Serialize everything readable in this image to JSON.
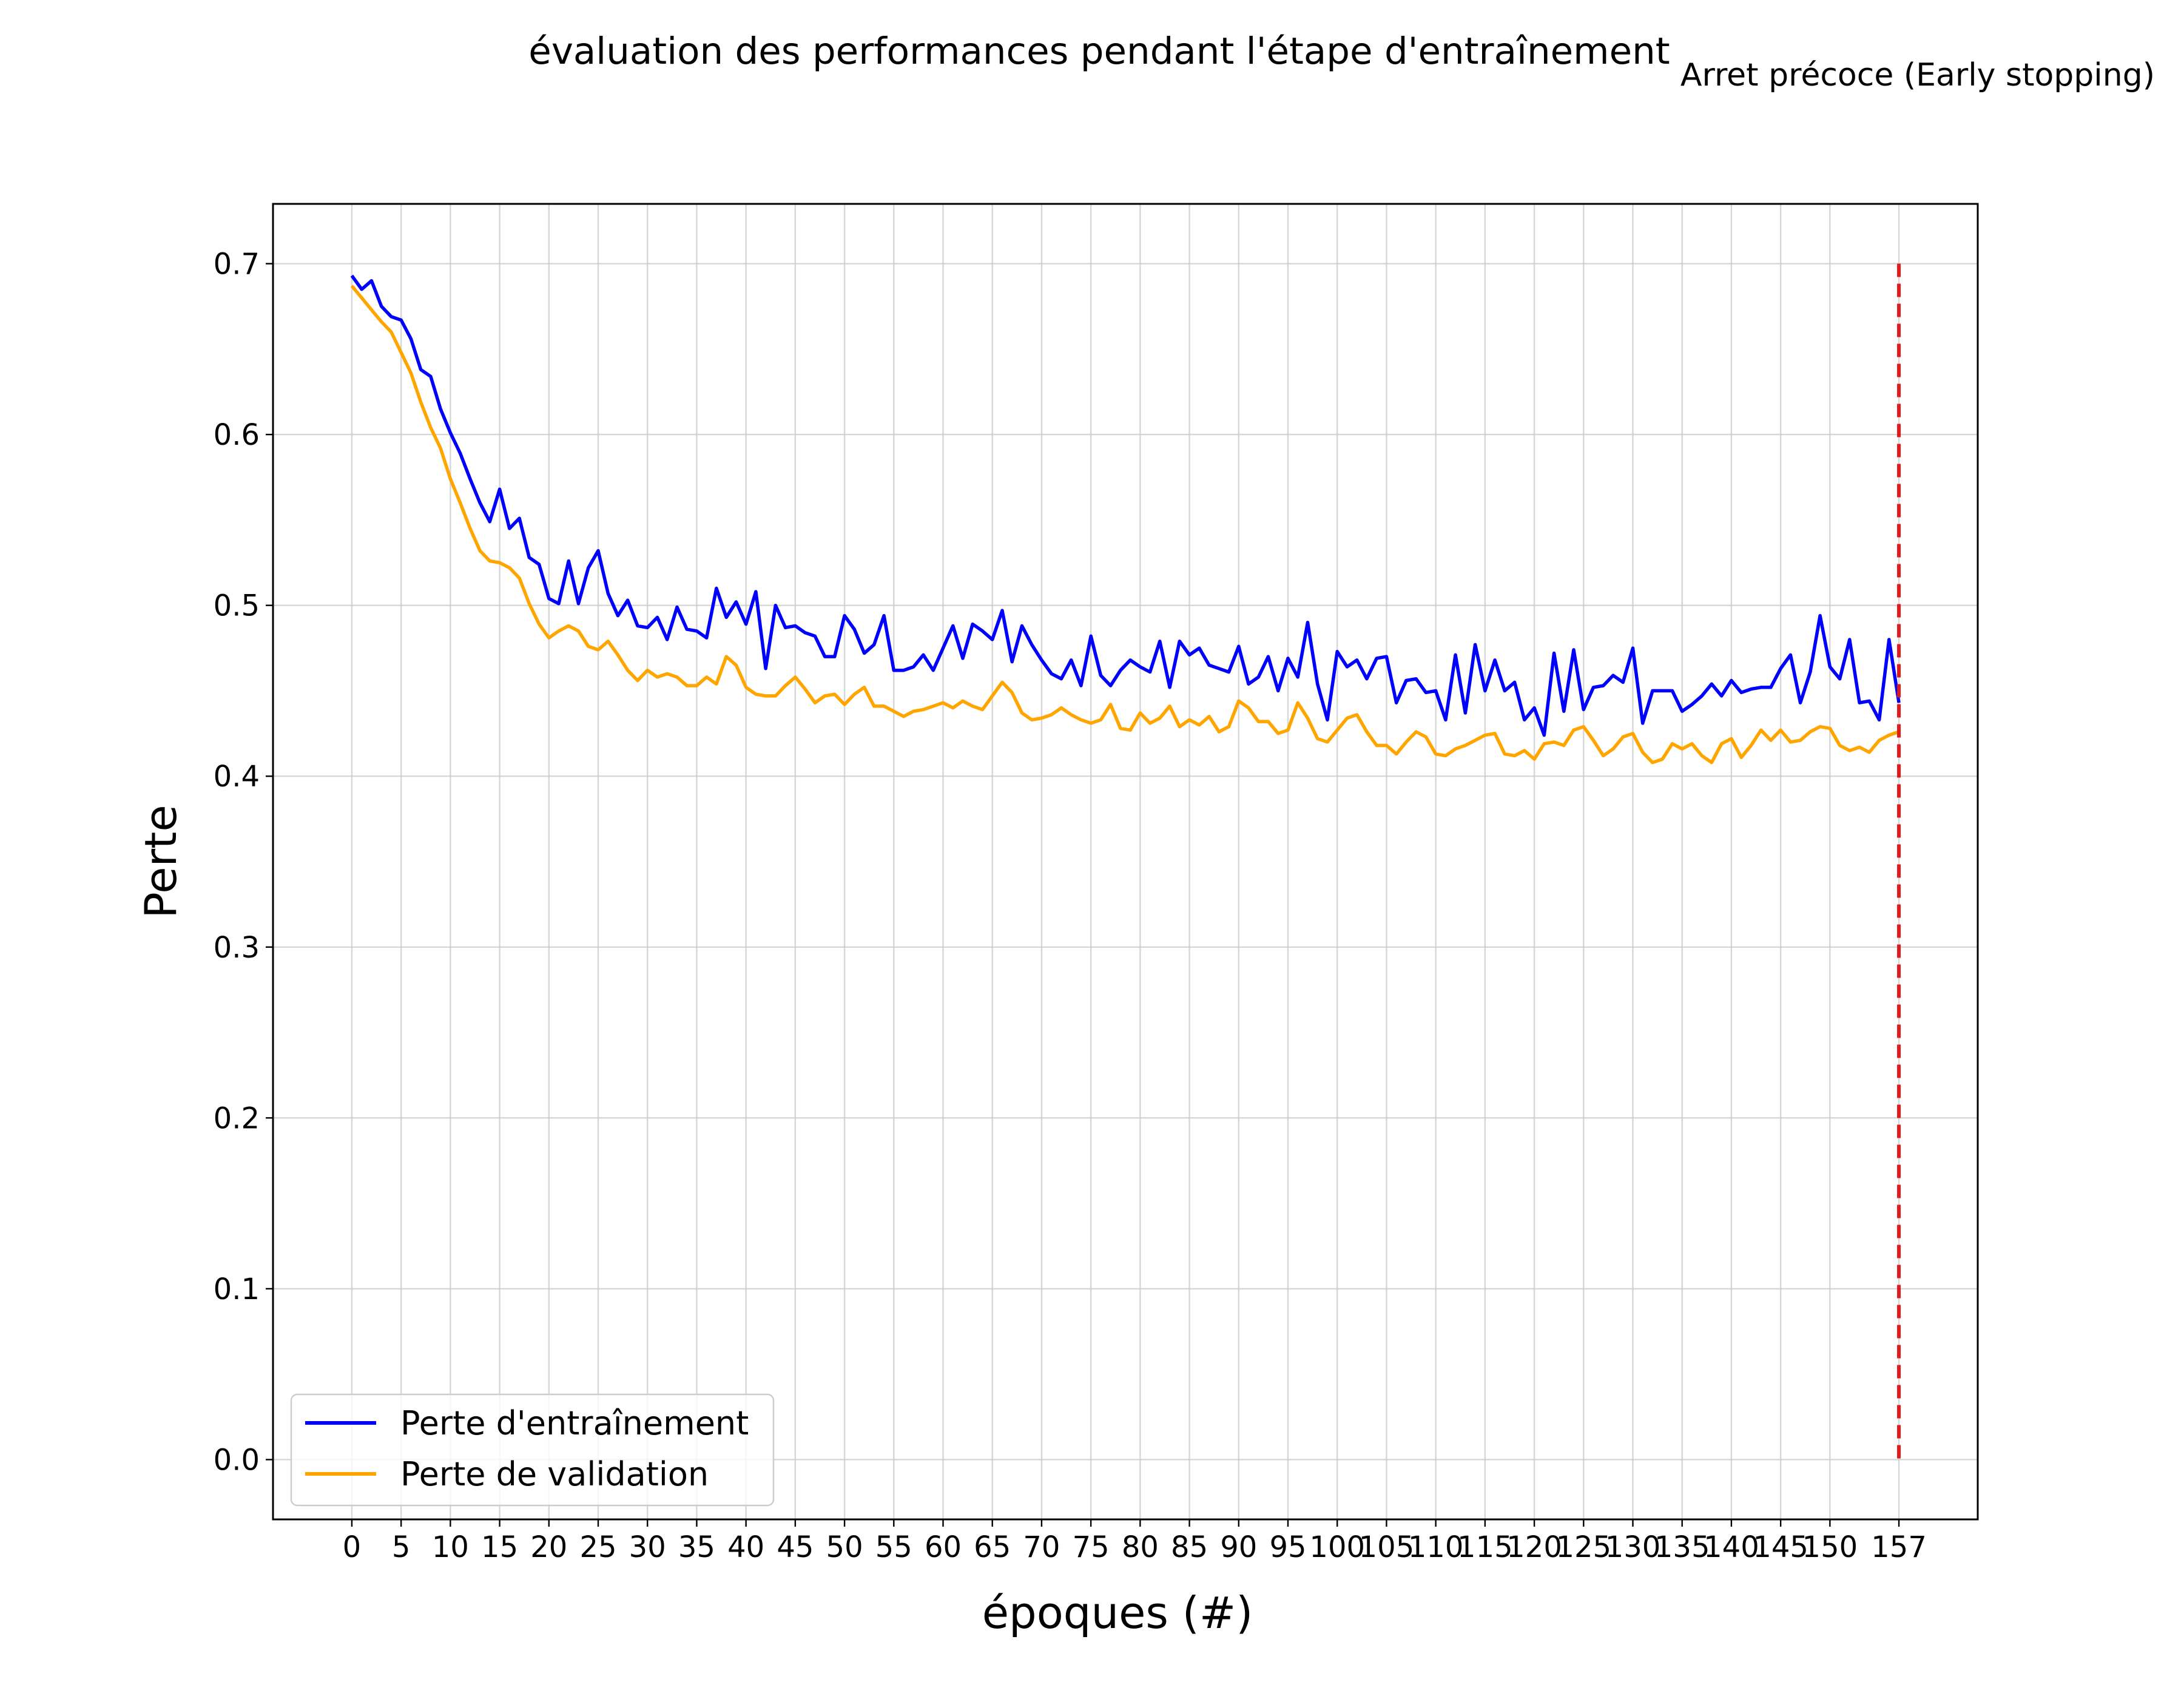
{
  "colors": {
    "train": "#0000ff",
    "val": "#ffa500",
    "stop_line": "#e31a1c",
    "note": "#1f77b4",
    "grid": "#cccccc"
  },
  "chart_data": {
    "type": "line",
    "title": "évaluation des performances pendant l'étape d'entraînement",
    "xlabel": "époques (#)",
    "ylabel": "Perte",
    "xlim": [
      -8,
      165
    ],
    "ylim": [
      -0.035,
      0.735
    ],
    "xticks": [
      0,
      5,
      10,
      15,
      20,
      25,
      30,
      35,
      40,
      45,
      50,
      55,
      60,
      65,
      70,
      75,
      80,
      85,
      90,
      95,
      100,
      105,
      110,
      115,
      120,
      125,
      130,
      135,
      140,
      145,
      150,
      157
    ],
    "yticks": [
      0.0,
      0.1,
      0.2,
      0.3,
      0.4,
      0.5,
      0.6,
      0.7
    ],
    "ytick_labels": [
      "0.0",
      "0.1",
      "0.2",
      "0.3",
      "0.4",
      "0.5",
      "0.6",
      "0.7"
    ],
    "grid": true,
    "legend_position": "lower-left",
    "annotation": {
      "text": "Arret précoce (Early stopping)",
      "x": 157,
      "ymin": 0.0,
      "ymax": 0.7,
      "style": "dashed"
    },
    "series": [
      {
        "name": "Perte d'entraînement",
        "color": "#0000ff",
        "x": [
          0,
          1,
          2,
          3,
          4,
          5,
          6,
          7,
          8,
          9,
          10,
          11,
          12,
          13,
          14,
          15,
          16,
          17,
          18,
          19,
          20,
          21,
          22,
          23,
          24,
          25,
          26,
          27,
          28,
          29,
          30,
          31,
          32,
          33,
          34,
          35,
          36,
          37,
          38,
          39,
          40,
          41,
          42,
          43,
          44,
          45,
          46,
          47,
          48,
          49,
          50,
          51,
          52,
          53,
          54,
          55,
          56,
          57,
          58,
          59,
          60,
          61,
          62,
          63,
          64,
          65,
          66,
          67,
          68,
          69,
          70,
          71,
          72,
          73,
          74,
          75,
          76,
          77,
          78,
          79,
          80,
          81,
          82,
          83,
          84,
          85,
          86,
          87,
          88,
          89,
          90,
          91,
          92,
          93,
          94,
          95,
          96,
          97,
          98,
          99,
          100,
          101,
          102,
          103,
          104,
          105,
          106,
          107,
          108,
          109,
          110,
          111,
          112,
          113,
          114,
          115,
          116,
          117,
          118,
          119,
          120,
          121,
          122,
          123,
          124,
          125,
          126,
          127,
          128,
          129,
          130,
          131,
          132,
          133,
          134,
          135,
          136,
          137,
          138,
          139,
          140,
          141,
          142,
          143,
          144,
          145,
          146,
          147,
          148,
          149,
          150,
          151,
          152,
          153,
          154,
          155,
          156,
          157
        ],
        "values": [
          0.693,
          0.685,
          0.69,
          0.675,
          0.669,
          0.667,
          0.656,
          0.638,
          0.634,
          0.615,
          0.601,
          0.589,
          0.574,
          0.56,
          0.549,
          0.568,
          0.545,
          0.551,
          0.528,
          0.524,
          0.504,
          0.501,
          0.526,
          0.501,
          0.522,
          0.532,
          0.507,
          0.494,
          0.503,
          0.488,
          0.487,
          0.493,
          0.48,
          0.499,
          0.486,
          0.485,
          0.481,
          0.51,
          0.493,
          0.502,
          0.489,
          0.508,
          0.463,
          0.5,
          0.487,
          0.488,
          0.484,
          0.482,
          0.47,
          0.47,
          0.494,
          0.486,
          0.472,
          0.477,
          0.494,
          0.462,
          0.462,
          0.464,
          0.471,
          0.462,
          0.475,
          0.488,
          0.469,
          0.489,
          0.485,
          0.48,
          0.497,
          0.467,
          0.488,
          0.477,
          0.468,
          0.46,
          0.457,
          0.468,
          0.453,
          0.482,
          0.459,
          0.453,
          0.462,
          0.468,
          0.464,
          0.461,
          0.479,
          0.452,
          0.479,
          0.471,
          0.475,
          0.465,
          0.463,
          0.461,
          0.476,
          0.454,
          0.458,
          0.47,
          0.45,
          0.469,
          0.458,
          0.49,
          0.454,
          0.433,
          0.473,
          0.464,
          0.468,
          0.457,
          0.469,
          0.47,
          0.443,
          0.456,
          0.457,
          0.449,
          0.45,
          0.433,
          0.471,
          0.437,
          0.477,
          0.45,
          0.468,
          0.45,
          0.455,
          0.433,
          0.44,
          0.424,
          0.472,
          0.438,
          0.474,
          0.439,
          0.452,
          0.453,
          0.459,
          0.455,
          0.475,
          0.431,
          0.45,
          0.45,
          0.45,
          0.438,
          0.442,
          0.447,
          0.454,
          0.447,
          0.456,
          0.449,
          0.451,
          0.452,
          0.452,
          0.463,
          0.471,
          0.443,
          0.461,
          0.494,
          0.464,
          0.457,
          0.48,
          0.443,
          0.444,
          0.433,
          0.48,
          0.443
        ]
      },
      {
        "name": "Perte de validation",
        "color": "#ffa500",
        "x": [
          0,
          1,
          2,
          3,
          4,
          5,
          6,
          7,
          8,
          9,
          10,
          11,
          12,
          13,
          14,
          15,
          16,
          17,
          18,
          19,
          20,
          21,
          22,
          23,
          24,
          25,
          26,
          27,
          28,
          29,
          30,
          31,
          32,
          33,
          34,
          35,
          36,
          37,
          38,
          39,
          40,
          41,
          42,
          43,
          44,
          45,
          46,
          47,
          48,
          49,
          50,
          51,
          52,
          53,
          54,
          55,
          56,
          57,
          58,
          59,
          60,
          61,
          62,
          63,
          64,
          65,
          66,
          67,
          68,
          69,
          70,
          71,
          72,
          73,
          74,
          75,
          76,
          77,
          78,
          79,
          80,
          81,
          82,
          83,
          84,
          85,
          86,
          87,
          88,
          89,
          90,
          91,
          92,
          93,
          94,
          95,
          96,
          97,
          98,
          99,
          100,
          101,
          102,
          103,
          104,
          105,
          106,
          107,
          108,
          109,
          110,
          111,
          112,
          113,
          114,
          115,
          116,
          117,
          118,
          119,
          120,
          121,
          122,
          123,
          124,
          125,
          126,
          127,
          128,
          129,
          130,
          131,
          132,
          133,
          134,
          135,
          136,
          137,
          138,
          139,
          140,
          141,
          142,
          143,
          144,
          145,
          146,
          147,
          148,
          149,
          150,
          151,
          152,
          153,
          154,
          155,
          156,
          157
        ],
        "values": [
          0.687,
          0.68,
          0.673,
          0.666,
          0.66,
          0.648,
          0.636,
          0.619,
          0.604,
          0.592,
          0.574,
          0.56,
          0.545,
          0.532,
          0.526,
          0.525,
          0.522,
          0.516,
          0.501,
          0.489,
          0.481,
          0.485,
          0.488,
          0.485,
          0.476,
          0.474,
          0.479,
          0.471,
          0.462,
          0.456,
          0.462,
          0.458,
          0.46,
          0.458,
          0.453,
          0.453,
          0.458,
          0.454,
          0.47,
          0.465,
          0.452,
          0.448,
          0.447,
          0.447,
          0.453,
          0.458,
          0.451,
          0.443,
          0.447,
          0.448,
          0.442,
          0.448,
          0.452,
          0.441,
          0.441,
          0.438,
          0.435,
          0.438,
          0.439,
          0.441,
          0.443,
          0.44,
          0.444,
          0.441,
          0.439,
          0.447,
          0.455,
          0.449,
          0.437,
          0.433,
          0.434,
          0.436,
          0.44,
          0.436,
          0.433,
          0.431,
          0.433,
          0.442,
          0.428,
          0.427,
          0.437,
          0.431,
          0.434,
          0.441,
          0.429,
          0.433,
          0.43,
          0.435,
          0.426,
          0.429,
          0.444,
          0.44,
          0.432,
          0.432,
          0.425,
          0.427,
          0.443,
          0.434,
          0.422,
          0.42,
          0.427,
          0.434,
          0.436,
          0.426,
          0.418,
          0.418,
          0.413,
          0.42,
          0.426,
          0.423,
          0.413,
          0.412,
          0.416,
          0.418,
          0.421,
          0.424,
          0.425,
          0.413,
          0.412,
          0.415,
          0.41,
          0.419,
          0.42,
          0.418,
          0.427,
          0.429,
          0.421,
          0.412,
          0.416,
          0.423,
          0.425,
          0.414,
          0.408,
          0.41,
          0.419,
          0.416,
          0.419,
          0.412,
          0.408,
          0.419,
          0.422,
          0.411,
          0.418,
          0.427,
          0.421,
          0.427,
          0.42,
          0.421,
          0.426,
          0.429,
          0.428,
          0.418,
          0.415,
          0.417,
          0.414,
          0.421,
          0.424,
          0.426
        ]
      }
    ]
  }
}
